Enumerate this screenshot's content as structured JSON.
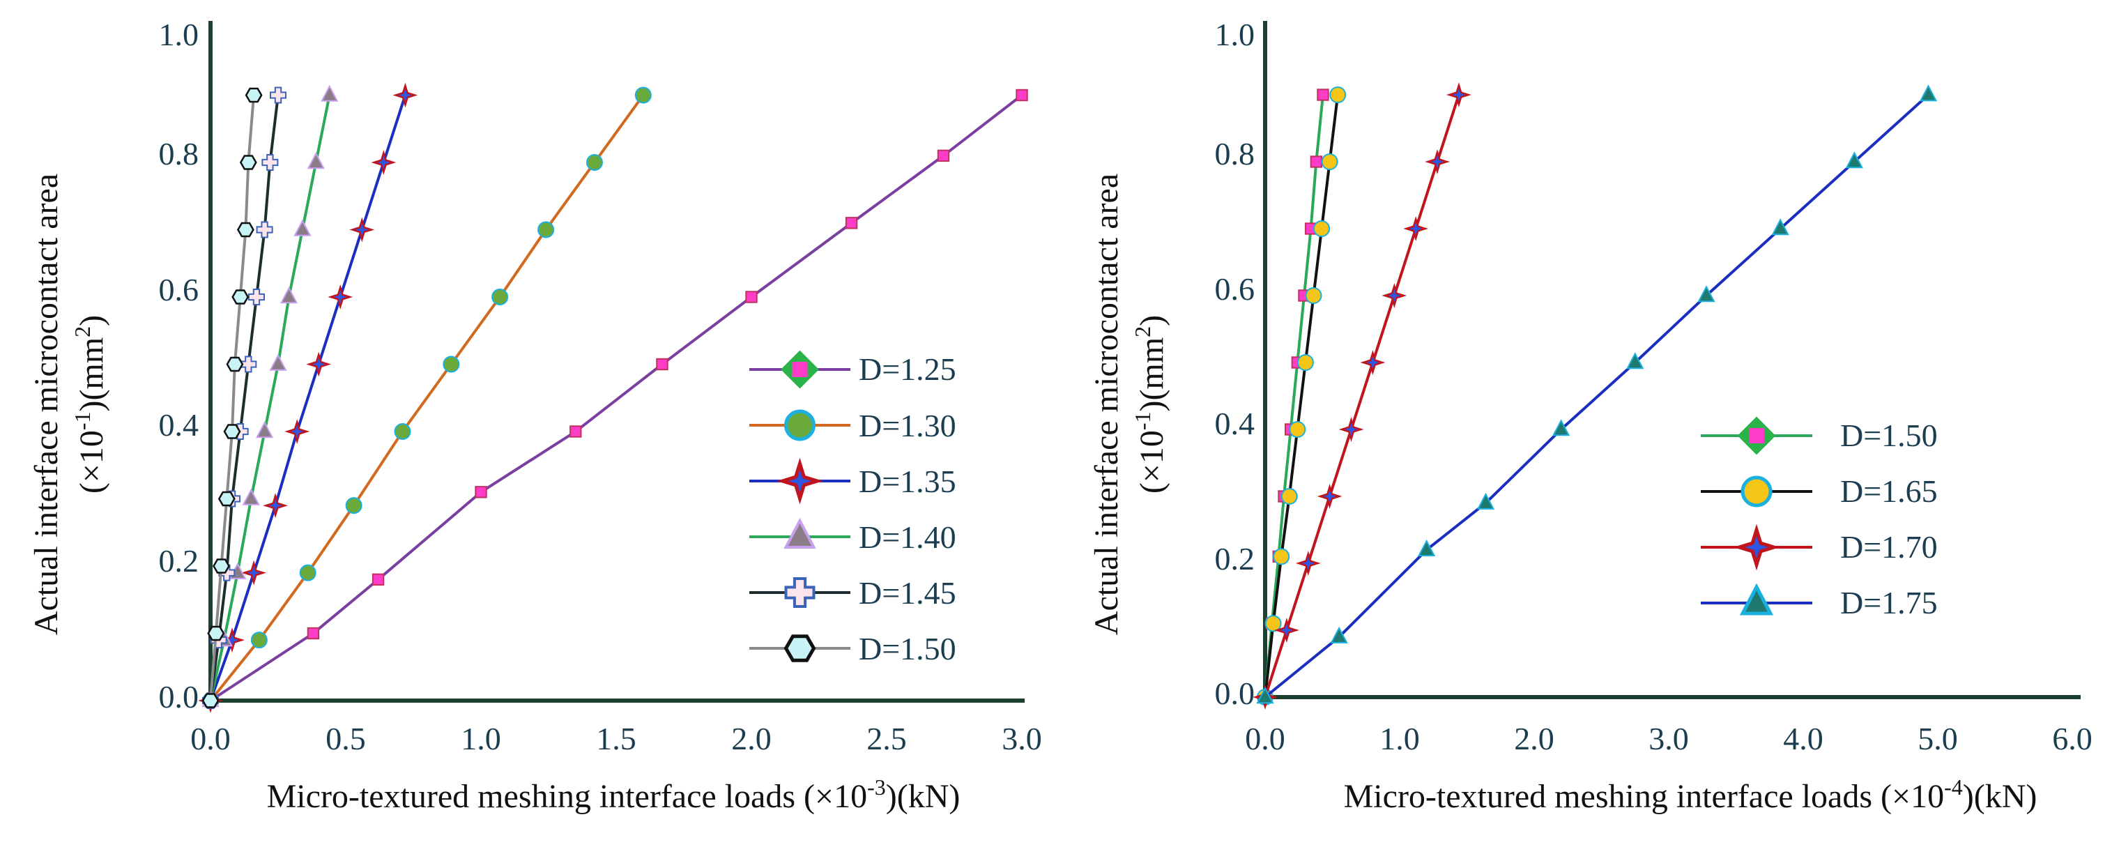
{
  "chart_data": [
    {
      "type": "line",
      "xlabel": "Micro-textured meshing interface loads (×10",
      "xlabel_exp": "-3",
      "xlabel_unit": ")(kN)",
      "ylabel_line1": "Actual interface microcontact area",
      "ylabel_line2_a": "(×10",
      "ylabel_line2_exp1": "-1",
      "ylabel_line2_b": ")(mm",
      "ylabel_line2_exp2": "2",
      "ylabel_line2_c": ")",
      "xlim": [
        0,
        3.0
      ],
      "ylim": [
        0,
        1.0
      ],
      "xticks": [
        "0.0",
        "0.5",
        "1.0",
        "1.5",
        "2.0",
        "2.5",
        "3.0"
      ],
      "yticks": [
        "0.0",
        "0.2",
        "0.4",
        "0.6",
        "0.8",
        "1.0"
      ],
      "xtick_values": [
        0,
        0.5,
        1.0,
        1.5,
        2.0,
        2.5,
        3.0
      ],
      "ytick_values": [
        0,
        0.2,
        0.4,
        0.6,
        0.8,
        1.0
      ],
      "legend_position": "bottom-right",
      "series": [
        {
          "name": "D=1.25",
          "color": "#7b3fa0",
          "marker": "square-pink",
          "x": [
            0,
            0.38,
            0.62,
            1.0,
            1.35,
            1.67,
            2.0,
            2.37,
            2.71,
            3.0
          ],
          "y": [
            0,
            0.1,
            0.18,
            0.31,
            0.4,
            0.5,
            0.6,
            0.71,
            0.81,
            0.9
          ]
        },
        {
          "name": "D=1.30",
          "color": "#d2691e",
          "marker": "circle-green",
          "x": [
            0,
            0.18,
            0.36,
            0.53,
            0.71,
            0.89,
            1.07,
            1.24,
            1.42,
            1.6
          ],
          "y": [
            0,
            0.09,
            0.19,
            0.29,
            0.4,
            0.5,
            0.6,
            0.7,
            0.8,
            0.9
          ]
        },
        {
          "name": "D=1.35",
          "color": "#1a2fc0",
          "marker": "star-red",
          "x": [
            0,
            0.08,
            0.16,
            0.24,
            0.32,
            0.4,
            0.48,
            0.56,
            0.64,
            0.72
          ],
          "y": [
            0,
            0.09,
            0.19,
            0.29,
            0.4,
            0.5,
            0.6,
            0.7,
            0.8,
            0.9
          ]
        },
        {
          "name": "D=1.40",
          "color": "#2ca85a",
          "marker": "triangle-purple",
          "x": [
            0,
            0.05,
            0.1,
            0.15,
            0.2,
            0.25,
            0.29,
            0.34,
            0.39,
            0.44
          ],
          "y": [
            0,
            0.09,
            0.19,
            0.3,
            0.4,
            0.5,
            0.6,
            0.7,
            0.8,
            0.9
          ]
        },
        {
          "name": "D=1.45",
          "color": "#1e2e2e",
          "marker": "cross-pink",
          "x": [
            0,
            0.03,
            0.06,
            0.08,
            0.11,
            0.14,
            0.17,
            0.2,
            0.22,
            0.25
          ],
          "y": [
            0,
            0.09,
            0.19,
            0.3,
            0.4,
            0.5,
            0.6,
            0.7,
            0.8,
            0.9
          ]
        },
        {
          "name": "D=1.50",
          "color": "#8a8a8a",
          "marker": "hexagon-cyan",
          "x": [
            0,
            0.02,
            0.04,
            0.06,
            0.08,
            0.09,
            0.11,
            0.13,
            0.14,
            0.16
          ],
          "y": [
            0,
            0.1,
            0.2,
            0.3,
            0.4,
            0.5,
            0.6,
            0.7,
            0.8,
            0.9
          ]
        }
      ]
    },
    {
      "type": "line",
      "xlabel": "Micro-textured meshing interface loads (×10",
      "xlabel_exp": "-4",
      "xlabel_unit": ")(kN)",
      "ylabel_line1": "Actual interface microcontact area",
      "ylabel_line2_a": "(×10",
      "ylabel_line2_exp1": "-1",
      "ylabel_line2_b": ")(mm",
      "ylabel_line2_exp2": "2",
      "ylabel_line2_c": ")",
      "xlim": [
        0,
        6.0
      ],
      "ylim": [
        0,
        1.0
      ],
      "xticks": [
        "0.0",
        "1.0",
        "2.0",
        "3.0",
        "4.0",
        "5.0",
        "6.0"
      ],
      "yticks": [
        "0.0",
        "0.2",
        "0.4",
        "0.6",
        "0.8",
        "1.0"
      ],
      "xtick_values": [
        0,
        1.0,
        2.0,
        3.0,
        4.0,
        5.0,
        6.0
      ],
      "ytick_values": [
        0,
        0.2,
        0.4,
        0.6,
        0.8,
        1.0
      ],
      "legend_position": "bottom-right",
      "series": [
        {
          "name": "D=1.50",
          "color": "#2ca85a",
          "marker": "square-pink",
          "x": [
            0,
            0.05,
            0.1,
            0.14,
            0.19,
            0.24,
            0.29,
            0.34,
            0.38,
            0.43
          ],
          "y": [
            0,
            0.11,
            0.21,
            0.3,
            0.4,
            0.5,
            0.6,
            0.7,
            0.8,
            0.9
          ]
        },
        {
          "name": "D=1.65",
          "color": "#111111",
          "marker": "circle-gold",
          "x": [
            0,
            0.06,
            0.12,
            0.18,
            0.24,
            0.3,
            0.36,
            0.42,
            0.48,
            0.54
          ],
          "y": [
            0,
            0.11,
            0.21,
            0.3,
            0.4,
            0.5,
            0.6,
            0.7,
            0.8,
            0.9
          ]
        },
        {
          "name": "D=1.70",
          "color": "#c0141e",
          "marker": "star-red",
          "x": [
            0,
            0.16,
            0.32,
            0.48,
            0.64,
            0.8,
            0.96,
            1.12,
            1.28,
            1.44
          ],
          "y": [
            0,
            0.1,
            0.2,
            0.3,
            0.4,
            0.5,
            0.6,
            0.7,
            0.8,
            0.9
          ]
        },
        {
          "name": "D=1.75",
          "color": "#1a2fc0",
          "marker": "triangle-teal",
          "x": [
            0,
            0.55,
            1.2,
            1.64,
            2.2,
            2.75,
            3.28,
            3.83,
            4.38,
            4.93
          ],
          "y": [
            0,
            0.09,
            0.22,
            0.29,
            0.4,
            0.5,
            0.6,
            0.7,
            0.8,
            0.9
          ]
        }
      ]
    }
  ]
}
